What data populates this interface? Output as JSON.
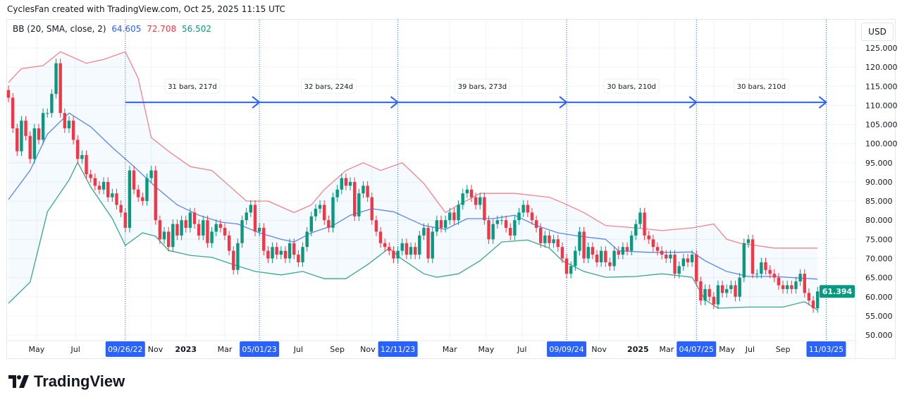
{
  "header": {
    "credit": "CyclesFan created with TradingView.com, Oct 25, 2025 11:15 UTC"
  },
  "legend": {
    "indicator": "BB (20, SMA, close, 2)",
    "basis": "64.605",
    "upper": "72.708",
    "lower": "56.502",
    "colors": {
      "basis": "#2962ff",
      "upper": "#f23645",
      "lower": "#089981"
    }
  },
  "price_axis": {
    "currency": "USD",
    "last_price": "61.394",
    "last_price_color": "#089981"
  },
  "footer": {
    "brand": "TradingView"
  },
  "chart_data": {
    "type": "candlestick",
    "interval": "weekly",
    "ylim": [
      50,
      125
    ],
    "y_ticks": [
      "125.000",
      "120.000",
      "115.000",
      "110.000",
      "105.000",
      "100.000",
      "95.000",
      "90.000",
      "85.000",
      "80.000",
      "75.000",
      "70.000",
      "65.000",
      "60.000",
      "55.000",
      "50.000"
    ],
    "grid": true,
    "colors": {
      "up": "#089981",
      "down": "#f23645",
      "measure": "#2962ff"
    },
    "close": [
      112,
      104,
      98,
      106,
      102,
      96,
      104,
      101,
      108,
      108,
      113,
      121,
      108,
      104,
      106,
      101,
      96,
      97,
      92,
      91,
      89,
      88,
      90,
      86,
      87,
      84,
      82,
      78,
      93,
      88,
      86,
      85,
      91,
      93,
      80,
      75,
      77,
      73,
      79,
      76,
      80,
      78,
      82,
      79,
      76,
      80,
      74,
      77,
      79,
      78,
      76,
      72,
      67,
      74,
      80,
      82,
      84,
      77,
      78,
      72,
      70,
      73,
      71,
      72,
      70,
      74,
      71,
      69,
      73,
      77,
      81,
      83,
      84,
      80,
      78,
      86,
      88,
      91,
      89,
      90,
      81,
      87,
      89,
      86,
      80,
      77,
      74,
      73,
      72,
      70,
      72,
      74,
      71,
      73,
      71,
      76,
      78,
      70,
      77,
      80,
      78,
      80,
      82,
      80,
      84,
      87,
      88,
      86,
      84,
      86,
      80,
      75,
      79,
      80,
      80,
      78,
      76,
      80,
      82,
      84,
      82,
      80,
      78,
      74,
      76,
      74,
      75,
      73,
      70,
      66,
      68,
      72,
      77,
      70,
      73,
      71,
      69,
      72,
      69,
      68,
      72,
      71,
      73,
      72,
      76,
      79,
      82,
      76,
      75,
      73,
      72,
      71,
      70,
      71,
      66,
      68,
      70,
      69,
      71,
      64,
      59,
      62,
      60,
      58,
      63,
      61,
      62,
      63,
      60,
      65,
      74,
      75,
      66,
      66,
      69,
      67,
      66,
      65,
      63,
      62,
      63,
      62,
      64,
      66,
      61,
      59,
      57,
      61.394
    ],
    "bb_upper": [
      [
        0,
        116
      ],
      [
        3,
        119.6
      ],
      [
        8,
        120.4
      ],
      [
        12,
        124
      ],
      [
        18,
        121
      ],
      [
        22,
        122
      ],
      [
        27,
        124
      ],
      [
        30,
        117
      ],
      [
        33,
        101.6
      ],
      [
        37,
        98
      ],
      [
        42,
        94
      ],
      [
        47,
        93
      ],
      [
        52,
        88
      ],
      [
        55,
        85
      ],
      [
        60,
        85
      ],
      [
        66,
        82
      ],
      [
        70,
        84
      ],
      [
        73,
        88
      ],
      [
        78,
        93
      ],
      [
        82,
        95
      ],
      [
        86,
        93
      ],
      [
        91,
        95
      ],
      [
        96,
        89.6
      ],
      [
        101,
        82
      ],
      [
        104,
        84
      ],
      [
        109,
        87
      ],
      [
        117,
        87
      ],
      [
        125,
        86
      ],
      [
        128,
        84.6
      ],
      [
        133,
        82
      ],
      [
        138,
        78.6
      ],
      [
        145,
        78
      ],
      [
        151,
        77.3
      ],
      [
        158,
        78
      ],
      [
        163,
        79
      ],
      [
        166,
        75
      ],
      [
        169,
        74
      ],
      [
        177,
        72.7
      ],
      [
        187,
        72.708
      ]
    ],
    "bb_basis": [
      [
        0,
        85.4
      ],
      [
        5,
        93
      ],
      [
        9,
        102.5
      ],
      [
        14,
        108
      ],
      [
        19,
        104.4
      ],
      [
        24,
        99
      ],
      [
        29,
        94
      ],
      [
        34,
        88.7
      ],
      [
        39,
        84
      ],
      [
        44,
        81.3
      ],
      [
        49,
        79.5
      ],
      [
        53,
        79
      ],
      [
        58,
        76.7
      ],
      [
        63,
        75
      ],
      [
        66,
        74.3
      ],
      [
        70,
        76.7
      ],
      [
        75,
        78.6
      ],
      [
        79,
        81.3
      ],
      [
        84,
        83
      ],
      [
        89,
        82.2
      ],
      [
        96,
        78.6
      ],
      [
        101,
        77.6
      ],
      [
        106,
        80.4
      ],
      [
        112,
        80.4
      ],
      [
        117,
        81.3
      ],
      [
        122,
        78.6
      ],
      [
        127,
        76.7
      ],
      [
        132,
        75.8
      ],
      [
        138,
        75
      ],
      [
        141,
        72
      ],
      [
        148,
        71.6
      ],
      [
        154,
        71.6
      ],
      [
        158,
        71.7
      ],
      [
        161,
        69.4
      ],
      [
        166,
        66.6
      ],
      [
        171,
        65.3
      ],
      [
        177,
        65.3
      ],
      [
        187,
        64.605
      ]
    ],
    "bb_lower": [
      [
        0,
        58.3
      ],
      [
        5,
        63.8
      ],
      [
        9,
        82.2
      ],
      [
        14,
        90.5
      ],
      [
        16,
        95.1
      ],
      [
        19,
        88.7
      ],
      [
        24,
        80.4
      ],
      [
        27,
        73.4
      ],
      [
        31,
        76.7
      ],
      [
        34,
        75.8
      ],
      [
        37,
        72.1
      ],
      [
        42,
        70.8
      ],
      [
        47,
        70.3
      ],
      [
        52,
        68.4
      ],
      [
        57,
        66.6
      ],
      [
        63,
        65.7
      ],
      [
        68,
        66.6
      ],
      [
        73,
        64.7
      ],
      [
        78,
        64.7
      ],
      [
        83,
        68.4
      ],
      [
        88,
        72.7
      ],
      [
        91,
        69.8
      ],
      [
        96,
        66
      ],
      [
        99,
        65.1
      ],
      [
        104,
        66
      ],
      [
        109,
        69.4
      ],
      [
        114,
        74.3
      ],
      [
        120,
        74.8
      ],
      [
        125,
        72.7
      ],
      [
        128,
        69.4
      ],
      [
        133,
        66.6
      ],
      [
        138,
        65.1
      ],
      [
        145,
        65.3
      ],
      [
        151,
        66
      ],
      [
        158,
        65.1
      ],
      [
        161,
        59.2
      ],
      [
        164,
        57
      ],
      [
        171,
        57.3
      ],
      [
        179,
        57.3
      ],
      [
        184,
        58.7
      ],
      [
        187,
        56.502
      ]
    ],
    "x_ticks": [
      {
        "label": "May",
        "bar": 6.5
      },
      {
        "label": "Jul",
        "bar": 15.5
      },
      {
        "label": "Nov",
        "bar": 33
      },
      {
        "label": "2023",
        "bar": 41,
        "bold": true
      },
      {
        "label": "Mar",
        "bar": 50
      },
      {
        "label": "Jul",
        "bar": 67
      },
      {
        "label": "Sep",
        "bar": 76
      },
      {
        "label": "Nov",
        "bar": 84
      },
      {
        "label": "Mar",
        "bar": 102
      },
      {
        "label": "May",
        "bar": 110.4
      },
      {
        "label": "Jul",
        "bar": 118.7
      },
      {
        "label": "Nov",
        "bar": 136.5
      },
      {
        "label": "2025",
        "bar": 145.5,
        "bold": true
      },
      {
        "label": "Mar",
        "bar": 154
      },
      {
        "label": "May",
        "bar": 163
      },
      {
        "label": "Jul",
        "bar": 171.4
      },
      {
        "label": "Sep",
        "bar": 179
      }
    ],
    "markers": [
      {
        "date": "09/26/22",
        "bar": 27
      },
      {
        "date": "05/01/23",
        "bar": 58
      },
      {
        "date": "12/11/23",
        "bar": 90
      },
      {
        "date": "09/09/24",
        "bar": 129
      },
      {
        "date": "04/07/25",
        "bar": 159
      },
      {
        "date": "11/03/25",
        "bar": 189
      }
    ],
    "measure_price": 110.8,
    "measures": [
      {
        "label": "31 bars, 217d"
      },
      {
        "label": "32 bars, 224d"
      },
      {
        "label": "39 bars, 273d"
      },
      {
        "label": "30 bars, 210d"
      },
      {
        "label": "30 bars, 210d"
      }
    ]
  }
}
